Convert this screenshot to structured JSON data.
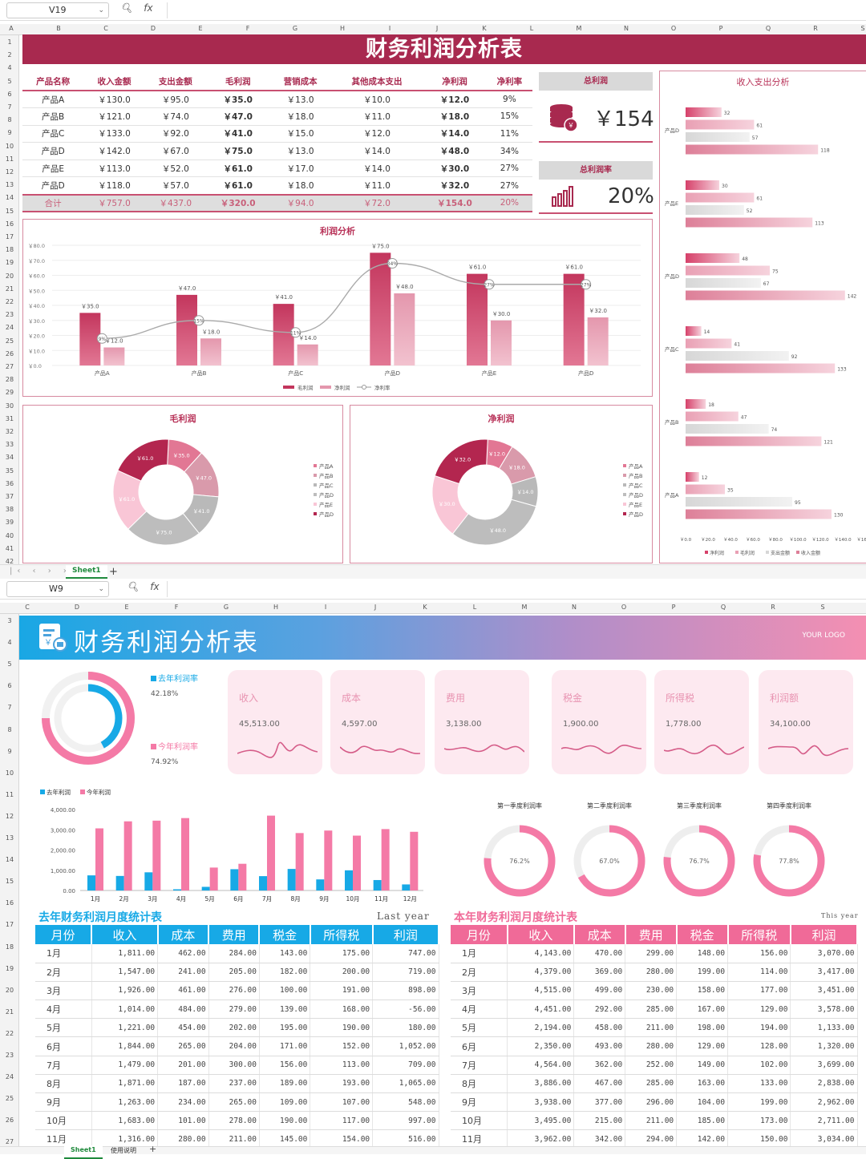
{
  "sheet1": {
    "cell_ref": "V19",
    "fx": "fx",
    "columns": [
      "A",
      "B",
      "C",
      "D",
      "E",
      "F",
      "G",
      "H",
      "I",
      "J",
      "K",
      "L",
      "M",
      "N",
      "O",
      "P",
      "Q",
      "R",
      "S"
    ],
    "rows": [
      "1",
      "2",
      "4",
      "5",
      "6",
      "7",
      "8",
      "9",
      "10",
      "11",
      "12",
      "13",
      "14",
      "15",
      "16",
      "17",
      "18",
      "19",
      "20",
      "21",
      "22",
      "23",
      "24",
      "25",
      "26",
      "27",
      "28",
      "29",
      "30",
      "31",
      "32",
      "33",
      "34",
      "35",
      "36",
      "37",
      "38",
      "39",
      "40",
      "41",
      "42"
    ],
    "title": "财务利润分析表",
    "table": {
      "headers": [
        "产品名称",
        "收入金额",
        "支出金额",
        "毛利润",
        "营销成本",
        "其他成本支出",
        "净利润",
        "净利率"
      ],
      "rows": [
        [
          "产品A",
          "￥130.0",
          "￥95.0",
          "￥35.0",
          "￥13.0",
          "￥10.0",
          "￥12.0",
          "9%"
        ],
        [
          "产品B",
          "￥121.0",
          "￥74.0",
          "￥47.0",
          "￥18.0",
          "￥11.0",
          "￥18.0",
          "15%"
        ],
        [
          "产品C",
          "￥133.0",
          "￥92.0",
          "￥41.0",
          "￥15.0",
          "￥12.0",
          "￥14.0",
          "11%"
        ],
        [
          "产品D",
          "￥142.0",
          "￥67.0",
          "￥75.0",
          "￥13.0",
          "￥14.0",
          "￥48.0",
          "34%"
        ],
        [
          "产品E",
          "￥113.0",
          "￥52.0",
          "￥61.0",
          "￥17.0",
          "￥14.0",
          "￥30.0",
          "27%"
        ],
        [
          "产品D",
          "￥118.0",
          "￥57.0",
          "￥61.0",
          "￥18.0",
          "￥11.0",
          "￥32.0",
          "27%"
        ]
      ],
      "total": [
        "合计",
        "￥757.0",
        "￥437.0",
        "￥320.0",
        "￥94.0",
        "￥72.0",
        "￥154.0",
        "20%"
      ]
    },
    "kpi_profit": {
      "label": "总利润",
      "value": "￥154",
      "icon": "coins-icon"
    },
    "kpi_rate": {
      "label": "总利润率",
      "value": "20%",
      "icon": "bar-chart-icon"
    },
    "sheet_tab": "Sheet1",
    "add_tab": "+"
  },
  "sheet2": {
    "cell_ref": "W9",
    "fx": "fx",
    "columns": [
      "C",
      "D",
      "E",
      "F",
      "G",
      "H",
      "I",
      "J",
      "K",
      "L",
      "M",
      "N",
      "O",
      "P",
      "Q",
      "R",
      "S"
    ],
    "rows": [
      "3",
      "4",
      "5",
      "6",
      "7",
      "8",
      "9",
      "10",
      "11",
      "12",
      "13",
      "14",
      "15",
      "16",
      "17",
      "18",
      "19",
      "20",
      "21",
      "22",
      "23",
      "24",
      "25",
      "26",
      "27"
    ],
    "title": "财务利润分析表",
    "logo": "YOUR LOGO",
    "last_year_rate": {
      "label": "去年利润率",
      "value": "42.18%",
      "fraction": 0.4218
    },
    "this_year_rate": {
      "label": "今年利润率",
      "value": "74.92%",
      "fraction": 0.7492
    },
    "cards": [
      {
        "label": "收入",
        "value": "45,513.00"
      },
      {
        "label": "成本",
        "value": "4,597.00"
      },
      {
        "label": "费用",
        "value": "3,138.00"
      },
      {
        "label": "税金",
        "value": "1,900.00"
      },
      {
        "label": "所得税",
        "value": "1,778.00"
      },
      {
        "label": "利润额",
        "value": "34,100.00"
      }
    ],
    "quarters": [
      {
        "label": "第一季度利润率",
        "value": "76.2%",
        "fraction": 0.762
      },
      {
        "label": "第二季度利润率",
        "value": "67.0%",
        "fraction": 0.67
      },
      {
        "label": "第三季度利润率",
        "value": "76.7%",
        "fraction": 0.767
      },
      {
        "label": "第四季度利润率",
        "value": "77.8%",
        "fraction": 0.778
      }
    ],
    "last_table": {
      "title": "去年财务利润月度统计表",
      "subtitle": "Last year",
      "headers": [
        "月份",
        "收入",
        "成本",
        "费用",
        "税金",
        "所得税",
        "利润"
      ],
      "rows": [
        [
          "1月",
          "1,811.00",
          "462.00",
          "284.00",
          "143.00",
          "175.00",
          "747.00"
        ],
        [
          "2月",
          "1,547.00",
          "241.00",
          "205.00",
          "182.00",
          "200.00",
          "719.00"
        ],
        [
          "3月",
          "1,926.00",
          "461.00",
          "276.00",
          "100.00",
          "191.00",
          "898.00"
        ],
        [
          "4月",
          "1,014.00",
          "484.00",
          "279.00",
          "139.00",
          "168.00",
          "-56.00"
        ],
        [
          "5月",
          "1,221.00",
          "454.00",
          "202.00",
          "195.00",
          "190.00",
          "180.00"
        ],
        [
          "6月",
          "1,844.00",
          "265.00",
          "204.00",
          "171.00",
          "152.00",
          "1,052.00"
        ],
        [
          "7月",
          "1,479.00",
          "201.00",
          "300.00",
          "156.00",
          "113.00",
          "709.00"
        ],
        [
          "8月",
          "1,871.00",
          "187.00",
          "237.00",
          "189.00",
          "193.00",
          "1,065.00"
        ],
        [
          "9月",
          "1,263.00",
          "234.00",
          "265.00",
          "109.00",
          "107.00",
          "548.00"
        ],
        [
          "10月",
          "1,683.00",
          "101.00",
          "278.00",
          "190.00",
          "117.00",
          "997.00"
        ],
        [
          "11月",
          "1,316.00",
          "280.00",
          "211.00",
          "145.00",
          "154.00",
          "516.00"
        ]
      ]
    },
    "this_table": {
      "title": "本年财务利润月度统计表",
      "subtitle": "This year",
      "headers": [
        "月份",
        "收入",
        "成本",
        "费用",
        "税金",
        "所得税",
        "利润"
      ],
      "rows": [
        [
          "1月",
          "4,143.00",
          "470.00",
          "299.00",
          "148.00",
          "156.00",
          "3,070.00"
        ],
        [
          "2月",
          "4,379.00",
          "369.00",
          "280.00",
          "199.00",
          "114.00",
          "3,417.00"
        ],
        [
          "3月",
          "4,515.00",
          "499.00",
          "230.00",
          "158.00",
          "177.00",
          "3,451.00"
        ],
        [
          "4月",
          "4,451.00",
          "292.00",
          "285.00",
          "167.00",
          "129.00",
          "3,578.00"
        ],
        [
          "5月",
          "2,194.00",
          "458.00",
          "211.00",
          "198.00",
          "194.00",
          "1,133.00"
        ],
        [
          "6月",
          "2,350.00",
          "493.00",
          "280.00",
          "129.00",
          "128.00",
          "1,320.00"
        ],
        [
          "7月",
          "4,564.00",
          "362.00",
          "252.00",
          "149.00",
          "102.00",
          "3,699.00"
        ],
        [
          "8月",
          "3,886.00",
          "467.00",
          "285.00",
          "163.00",
          "133.00",
          "2,838.00"
        ],
        [
          "9月",
          "3,938.00",
          "377.00",
          "296.00",
          "104.00",
          "199.00",
          "2,962.00"
        ],
        [
          "10月",
          "3,495.00",
          "215.00",
          "211.00",
          "185.00",
          "173.00",
          "2,711.00"
        ],
        [
          "11月",
          "3,962.00",
          "342.00",
          "294.00",
          "142.00",
          "150.00",
          "3,034.00"
        ]
      ]
    },
    "sheet_tabs": [
      "Sheet1",
      "使用说明"
    ],
    "add_tab": "+"
  },
  "colors": {
    "wine": "#a8294f",
    "pink": "#e8799d",
    "blue": "#17a9e6",
    "pink2": "#f47aa6"
  },
  "chart_data": [
    {
      "type": "bar",
      "title": "利润分析",
      "categories": [
        "产品A",
        "产品B",
        "产品C",
        "产品D",
        "产品E",
        "产品D"
      ],
      "series": [
        {
          "name": "毛利润",
          "values": [
            35,
            47,
            41,
            75,
            61,
            61
          ]
        },
        {
          "name": "净利润",
          "values": [
            12,
            18,
            14,
            48,
            30,
            32
          ]
        },
        {
          "name": "净利率",
          "values": [
            9,
            15,
            11,
            34,
            27,
            27
          ]
        }
      ],
      "ylim": [
        0,
        80
      ],
      "yticks": [
        "￥0.0",
        "￥10.0",
        "￥20.0",
        "￥30.0",
        "￥40.0",
        "￥50.0",
        "￥60.0",
        "￥70.0",
        "￥80.0"
      ],
      "data_labels": [
        "￥35.0",
        "￥12.0",
        "￥47.0",
        "￥18.0",
        "￥41.0",
        "￥14.0",
        "￥75.0",
        "￥48.0",
        "￥61.0",
        "￥30.0",
        "￥61.0",
        "￥32.0"
      ],
      "rate_labels": [
        "9%",
        "15%",
        "11%",
        "34%",
        "27%",
        "27%"
      ],
      "legend": [
        "毛利润",
        "净利润",
        "净利率"
      ]
    },
    {
      "type": "pie",
      "title": "毛利润",
      "labels": [
        "产品A",
        "产品B",
        "产品C",
        "产品D",
        "产品E",
        "产品D"
      ],
      "values": [
        35,
        47,
        41,
        75,
        61,
        61
      ],
      "data_labels": [
        "￥35.0",
        "￥47.0",
        "￥41.0",
        "￥75.0",
        "￥61.0",
        "￥61.0"
      ]
    },
    {
      "type": "pie",
      "title": "净利润",
      "labels": [
        "产品A",
        "产品B",
        "产品C",
        "产品D",
        "产品E",
        "产品D"
      ],
      "values": [
        12,
        18,
        14,
        48,
        30,
        32
      ],
      "data_labels": [
        "￥12.0",
        "￥18.0",
        "￥14.0",
        "￥48.0",
        "￥30.0",
        "￥32.0"
      ]
    },
    {
      "type": "bar",
      "title": "收入支出分析",
      "orientation": "horizontal",
      "categories": [
        "产品D",
        "产品E",
        "产品D",
        "产品C",
        "产品B",
        "产品A"
      ],
      "series": [
        {
          "name": "净利润",
          "values": [
            32,
            30,
            48,
            14,
            18,
            12
          ]
        },
        {
          "name": "毛利润",
          "values": [
            61,
            61,
            75,
            41,
            47,
            35
          ]
        },
        {
          "name": "支出金额",
          "values": [
            57,
            52,
            67,
            92,
            74,
            95
          ]
        },
        {
          "name": "收入金额",
          "values": [
            118,
            113,
            142,
            133,
            121,
            130
          ]
        }
      ],
      "xlim": [
        0,
        160
      ],
      "xticks": [
        "￥0.0",
        "￥20.0",
        "￥40.0",
        "￥60.0",
        "￥80.0",
        "￥100.0",
        "￥120.0",
        "￥140.0",
        "￥160.0"
      ],
      "legend": [
        "净利润",
        "毛利润",
        "支出金额",
        "收入金额"
      ]
    },
    {
      "type": "bar",
      "categories": [
        "1月",
        "2月",
        "3月",
        "4月",
        "5月",
        "6月",
        "7月",
        "8月",
        "9月",
        "10月",
        "11月",
        "12月"
      ],
      "series": [
        {
          "name": "去年利润",
          "values": [
            747,
            719,
            898,
            -56,
            180,
            1052,
            709,
            1065,
            548,
            997,
            516,
            300
          ]
        },
        {
          "name": "今年利润",
          "values": [
            3070,
            3417,
            3451,
            3578,
            1133,
            1320,
            3699,
            2838,
            2962,
            2711,
            3034,
            2900
          ]
        }
      ],
      "ylim": [
        0,
        4000
      ],
      "yticks": [
        "0.00",
        "1,000.00",
        "2,000.00",
        "3,000.00",
        "4,000.00"
      ],
      "legend": [
        "去年利润",
        "今年利润"
      ]
    }
  ]
}
